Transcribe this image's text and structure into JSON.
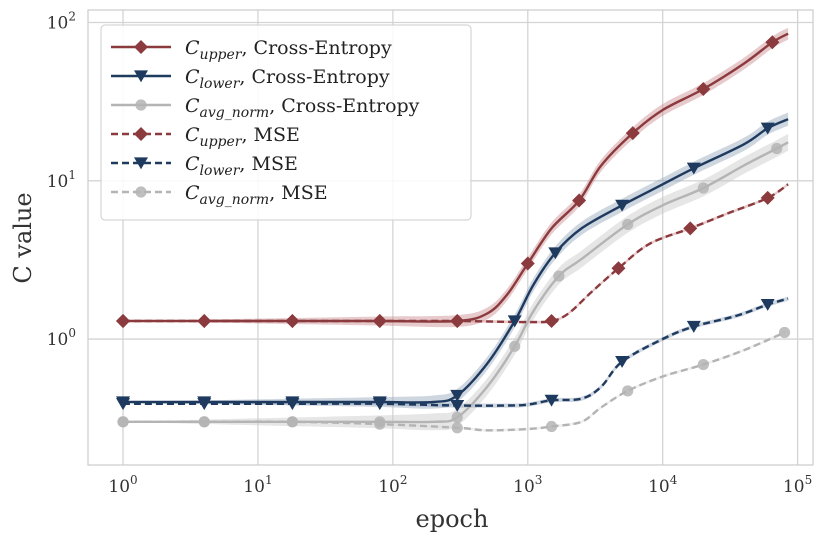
{
  "chart_data": {
    "type": "line",
    "title": "",
    "xlabel": "epoch",
    "ylabel": "C value",
    "x_scale": "log",
    "y_scale": "log",
    "xlim": [
      0.55,
      130000
    ],
    "ylim": [
      0.16,
      120
    ],
    "grid": true,
    "legend_position": "top-left",
    "x_ticks": [
      {
        "value": 1,
        "base": "10",
        "exp": "0"
      },
      {
        "value": 10,
        "base": "10",
        "exp": "1"
      },
      {
        "value": 100,
        "base": "10",
        "exp": "2"
      },
      {
        "value": 1000,
        "base": "10",
        "exp": "3"
      },
      {
        "value": 10000,
        "base": "10",
        "exp": "4"
      },
      {
        "value": 100000,
        "base": "10",
        "exp": "5"
      }
    ],
    "y_ticks": [
      {
        "value": 1,
        "base": "10",
        "exp": "0"
      },
      {
        "value": 10,
        "base": "10",
        "exp": "1"
      },
      {
        "value": 100,
        "base": "10",
        "exp": "2"
      }
    ],
    "series": [
      {
        "name_main": "C",
        "name_sub": "upper",
        "name_rest": ", Cross-Entropy",
        "color": "#8b3a3e",
        "dash": "solid",
        "marker": "diamond",
        "band": 0.09,
        "band_color": "#c98a8d",
        "x": [
          1,
          4,
          18,
          80,
          300,
          500,
          700,
          1000,
          1500,
          2400,
          3500,
          6000,
          10000,
          20000,
          40000,
          65000,
          85000
        ],
        "y": [
          1.3,
          1.3,
          1.3,
          1.3,
          1.3,
          1.45,
          1.9,
          3.0,
          5.0,
          7.5,
          12.5,
          20,
          28,
          38,
          55,
          75,
          85
        ],
        "markers_x": [
          1,
          4,
          18,
          80,
          300,
          1000,
          2400,
          6000,
          20000,
          65000
        ],
        "markers_y": [
          1.3,
          1.3,
          1.3,
          1.3,
          1.3,
          3.0,
          7.5,
          20,
          38,
          75
        ]
      },
      {
        "name_main": "C",
        "name_sub": "lower",
        "name_rest": ", Cross-Entropy",
        "color": "#1f3a5f",
        "dash": "solid",
        "marker": "triangle-down",
        "band": 0.1,
        "band_color": "#93a3ba",
        "x": [
          1,
          4,
          18,
          80,
          200,
          300,
          500,
          800,
          1100,
          1600,
          2500,
          5000,
          10000,
          17000,
          40000,
          60000,
          85000
        ],
        "y": [
          0.4,
          0.4,
          0.4,
          0.4,
          0.4,
          0.44,
          0.7,
          1.3,
          2.2,
          3.5,
          5.0,
          7.0,
          9.5,
          12,
          17,
          21.5,
          24.5
        ],
        "markers_x": [
          1,
          4,
          18,
          80,
          300,
          800,
          1600,
          5000,
          17000,
          60000
        ],
        "markers_y": [
          0.4,
          0.4,
          0.4,
          0.4,
          0.44,
          1.3,
          3.5,
          7.0,
          12,
          21.5
        ]
      },
      {
        "name_main": "C",
        "name_sub": "avg_norm",
        "name_rest": ", Cross-Entropy",
        "color": "#b4b4b4",
        "dash": "solid",
        "marker": "circle",
        "band": 0.13,
        "band_color": "#c8c8c8",
        "x": [
          1,
          4,
          18,
          80,
          200,
          300,
          500,
          800,
          1100,
          1700,
          2500,
          5500,
          10000,
          20000,
          40000,
          70000,
          85000
        ],
        "y": [
          0.3,
          0.3,
          0.3,
          0.3,
          0.3,
          0.32,
          0.5,
          0.9,
          1.5,
          2.5,
          3.2,
          5.3,
          7.0,
          9.0,
          12.5,
          16,
          17.5
        ],
        "markers_x": [
          1,
          4,
          18,
          80,
          300,
          800,
          1700,
          5500,
          20000,
          70000
        ],
        "markers_y": [
          0.3,
          0.3,
          0.3,
          0.3,
          0.32,
          0.9,
          2.5,
          5.3,
          9.0,
          16
        ]
      },
      {
        "name_main": "C",
        "name_sub": "upper",
        "name_rest": ", MSE",
        "color": "#8b3a3e",
        "dash": "dashed",
        "marker": "diamond",
        "band": 0.02,
        "band_color": "#c98a8d",
        "x": [
          1,
          4,
          18,
          80,
          300,
          1000,
          1500,
          2000,
          3000,
          4700,
          8000,
          16000,
          30000,
          60000,
          85000
        ],
        "y": [
          1.3,
          1.3,
          1.3,
          1.3,
          1.3,
          1.28,
          1.3,
          1.45,
          2.0,
          2.8,
          4.0,
          5.0,
          6.2,
          7.8,
          9.5
        ],
        "markers_x": [
          1,
          4,
          18,
          80,
          300,
          1500,
          4700,
          16000,
          60000
        ],
        "markers_y": [
          1.3,
          1.3,
          1.3,
          1.3,
          1.3,
          1.3,
          2.8,
          5.0,
          7.8
        ]
      },
      {
        "name_main": "C",
        "name_sub": "lower",
        "name_rest": ", MSE",
        "color": "#1f3a5f",
        "dash": "dashed",
        "marker": "triangle-down",
        "band": 0.03,
        "band_color": "#93a3ba",
        "x": [
          1,
          4,
          18,
          80,
          300,
          700,
          1000,
          1500,
          2500,
          3500,
          5000,
          10000,
          17000,
          35000,
          60000,
          85000
        ],
        "y": [
          0.39,
          0.39,
          0.39,
          0.39,
          0.38,
          0.38,
          0.385,
          0.41,
          0.42,
          0.5,
          0.72,
          1.0,
          1.2,
          1.4,
          1.65,
          1.8
        ],
        "markers_x": [
          1,
          4,
          18,
          80,
          300,
          1500,
          5000,
          17000,
          60000
        ],
        "markers_y": [
          0.39,
          0.39,
          0.39,
          0.39,
          0.38,
          0.41,
          0.72,
          1.2,
          1.65
        ]
      },
      {
        "name_main": "C",
        "name_sub": "avg_norm",
        "name_rest": ", MSE",
        "color": "#b4b4b4",
        "dash": "dashed",
        "marker": "circle",
        "band": 0.02,
        "band_color": "#dddddd",
        "x": [
          1,
          4,
          18,
          80,
          300,
          500,
          1000,
          1500,
          2500,
          3500,
          5500,
          10000,
          20000,
          40000,
          80000
        ],
        "y": [
          0.3,
          0.3,
          0.3,
          0.29,
          0.275,
          0.265,
          0.27,
          0.28,
          0.3,
          0.37,
          0.47,
          0.58,
          0.69,
          0.85,
          1.1
        ],
        "markers_x": [
          1,
          4,
          18,
          80,
          300,
          1500,
          5500,
          20000,
          80000
        ],
        "markers_y": [
          0.3,
          0.3,
          0.3,
          0.29,
          0.275,
          0.28,
          0.47,
          0.69,
          1.1
        ]
      }
    ]
  }
}
